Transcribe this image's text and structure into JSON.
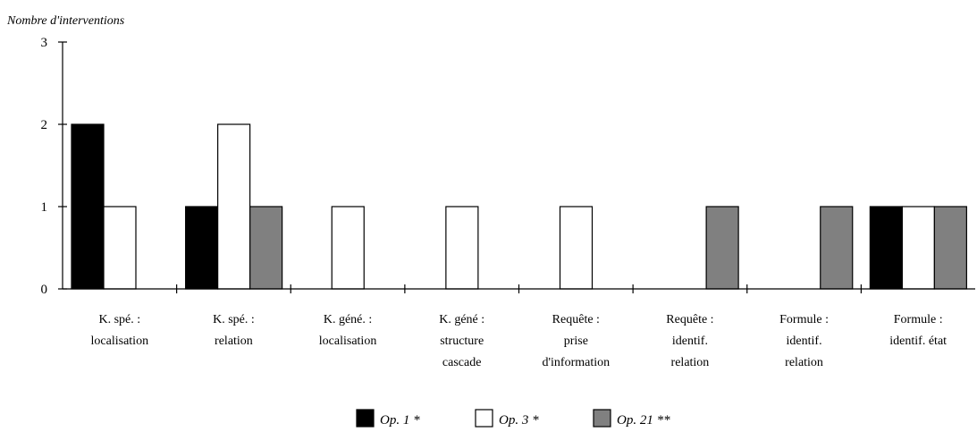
{
  "chart_data": {
    "type": "bar",
    "ylabel": "Nombre d'interventions",
    "ylim": [
      0,
      3
    ],
    "yticks": [
      "0",
      "1",
      "2",
      "3"
    ],
    "grid": false,
    "legend_position": "bottom",
    "categories": [
      [
        "K. spé. :",
        "localisation"
      ],
      [
        "K. spé. :",
        "relation"
      ],
      [
        "K. géné. :",
        "localisation"
      ],
      [
        "K. géné :",
        "structure",
        "cascade"
      ],
      [
        "Requête :",
        "prise",
        "d'information"
      ],
      [
        "Requête :",
        "identif.",
        "relation"
      ],
      [
        "Formule :",
        "identif.",
        "relation"
      ],
      [
        "Formule :",
        "identif. état"
      ]
    ],
    "series": [
      {
        "name": "Op. 1 *",
        "color": "#000000",
        "values": [
          2,
          1,
          0,
          0,
          0,
          0,
          0,
          1
        ]
      },
      {
        "name": "Op. 3 *",
        "color": "#ffffff",
        "values": [
          1,
          2,
          1,
          1,
          1,
          0,
          0,
          1
        ]
      },
      {
        "name": "Op. 21 **",
        "color": "#808080",
        "values": [
          0,
          1,
          0,
          0,
          0,
          1,
          1,
          1
        ]
      }
    ]
  }
}
